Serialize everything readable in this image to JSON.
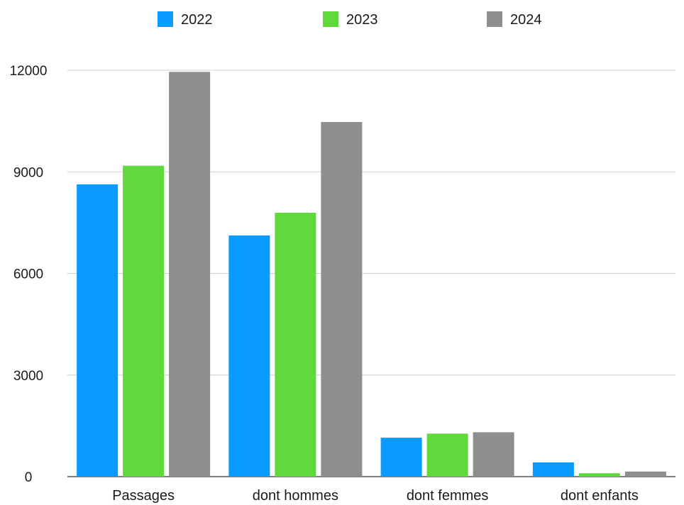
{
  "chart_data": {
    "type": "bar",
    "categories": [
      "Passages",
      "dont hommes",
      "dont femmes",
      "dont enfants"
    ],
    "series": [
      {
        "name": "2022",
        "color": "#0a9bff",
        "values": [
          8630,
          7120,
          1150,
          420
        ]
      },
      {
        "name": "2023",
        "color": "#5fd93c",
        "values": [
          9180,
          7790,
          1270,
          100
        ]
      },
      {
        "name": "2024",
        "color": "#8e8e8e",
        "values": [
          11950,
          10470,
          1310,
          150
        ]
      }
    ],
    "title": "",
    "xlabel": "",
    "ylabel": "",
    "ylim": [
      0,
      12000
    ],
    "yticks": [
      0,
      3000,
      6000,
      9000,
      12000
    ],
    "grid": true,
    "legend_position": "top-center"
  }
}
